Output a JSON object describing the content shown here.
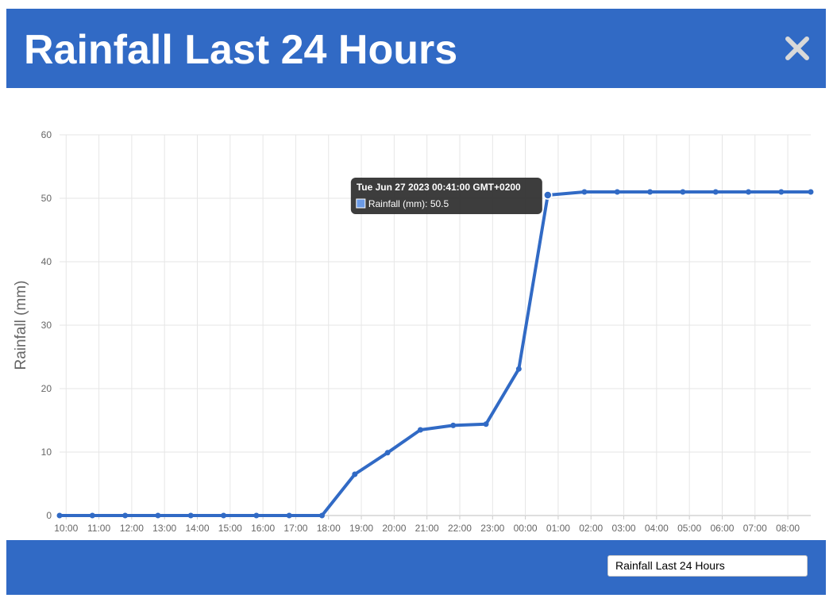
{
  "header": {
    "title": "Rainfall Last 24 Hours",
    "close_icon": "close-icon"
  },
  "footer": {
    "selected_option": "Rainfall Last 24 Hours"
  },
  "colors": {
    "accent": "#316ac5",
    "line": "#316ac5",
    "tooltip_bg": "#333333"
  },
  "chart_data": {
    "type": "line",
    "ylabel": "Rainfall (mm)",
    "ylim": [
      0,
      60
    ],
    "yticks": [
      0,
      10,
      20,
      30,
      40,
      50,
      60
    ],
    "xlim": [
      "09:48",
      "08:42"
    ],
    "xticks": [
      "10:00",
      "11:00",
      "12:00",
      "13:00",
      "14:00",
      "15:00",
      "16:00",
      "17:00",
      "18:00",
      "19:00",
      "20:00",
      "21:00",
      "22:00",
      "23:00",
      "00:00",
      "01:00",
      "02:00",
      "03:00",
      "04:00",
      "05:00",
      "06:00",
      "07:00",
      "08:00"
    ],
    "grid": true,
    "series": [
      {
        "name": "Rainfall (mm)",
        "x": [
          "09:48",
          "10:48",
          "11:48",
          "12:48",
          "13:48",
          "14:48",
          "15:48",
          "16:48",
          "17:48",
          "18:48",
          "19:48",
          "20:48",
          "21:48",
          "22:48",
          "23:48",
          "00:41",
          "01:48",
          "02:48",
          "03:48",
          "04:48",
          "05:48",
          "06:48",
          "07:48",
          "08:42"
        ],
        "y": [
          0,
          0,
          0,
          0,
          0,
          0,
          0,
          0,
          0,
          6.5,
          9.9,
          13.5,
          14.2,
          14.4,
          23.1,
          50.5,
          51.0,
          51.0,
          51.0,
          51.0,
          51.0,
          51.0,
          51.0,
          51.0
        ]
      }
    ],
    "tooltip": {
      "title": "Tue Jun 27 2023 00:41:00 GMT+0200",
      "label": "Rainfall (mm): 50.5",
      "point_index": 15
    }
  }
}
